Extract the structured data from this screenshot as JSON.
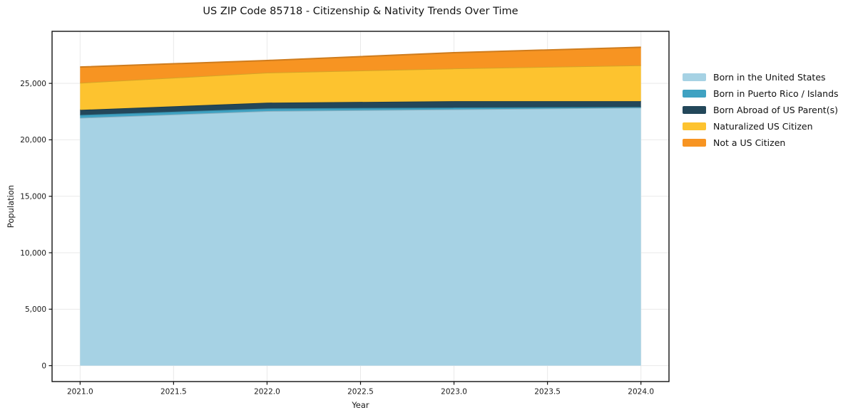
{
  "chart_data": {
    "type": "area",
    "stacked": true,
    "title": "US ZIP Code 85718 - Citizenship & Nativity Trends Over Time",
    "xlabel": "Year",
    "ylabel": "Population",
    "x": [
      2021,
      2022,
      2023,
      2024
    ],
    "series": [
      {
        "name": "Born in the United States",
        "color": "#a6d2e4",
        "values": [
          21950,
          22550,
          22700,
          22850
        ]
      },
      {
        "name": "Born in Puerto Rico / Islands",
        "color": "#3fa2c2",
        "values": [
          250,
          230,
          160,
          60
        ]
      },
      {
        "name": "Born Abroad of US Parent(s)",
        "color": "#23475a",
        "values": [
          450,
          510,
          560,
          510
        ]
      },
      {
        "name": "Naturalized US Citizen",
        "color": "#fdc32f",
        "values": [
          2400,
          2660,
          2900,
          3180
        ]
      },
      {
        "name": "Not a US Citizen",
        "color": "#f79422",
        "values": [
          1400,
          1075,
          1400,
          1600
        ]
      }
    ],
    "totals": [
      26450,
      27025,
      27720,
      28200
    ],
    "xlim": [
      2020.85,
      2024.15
    ],
    "ylim": [
      -1410,
      29610
    ],
    "xticks": {
      "values": [
        2021.0,
        2021.5,
        2022.0,
        2022.5,
        2023.0,
        2023.5,
        2024.0
      ],
      "labels": [
        "2021.0",
        "2021.5",
        "2022.0",
        "2022.5",
        "2023.0",
        "2023.5",
        "2024.0"
      ]
    },
    "yticks": {
      "values": [
        0,
        5000,
        10000,
        15000,
        20000,
        25000
      ],
      "labels": [
        "0",
        "5,000",
        "10,000",
        "15,000",
        "20,000",
        "25,000"
      ]
    },
    "grid": true,
    "legend_position": "right",
    "colors": {
      "grid": "#e9e9e9",
      "frame": "#111111",
      "text": "#1a1a1a",
      "background": "#ffffff"
    }
  }
}
